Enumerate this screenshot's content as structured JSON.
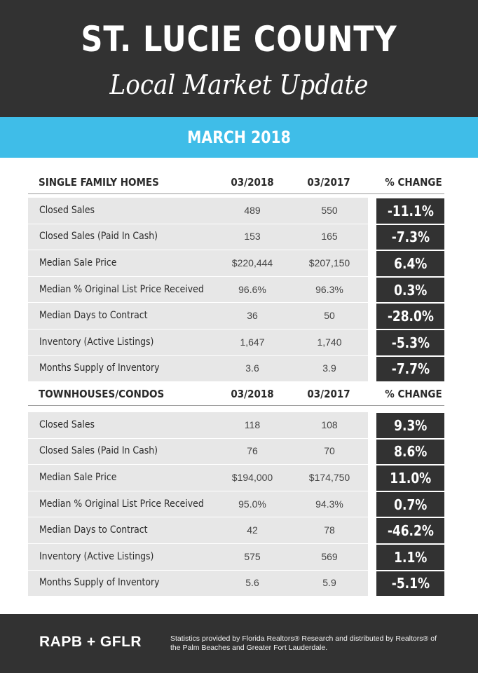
{
  "header": {
    "title": "ST. LUCIE COUNTY",
    "subtitle": "Local Market Update"
  },
  "month": "MARCH 2018",
  "sections": [
    {
      "name": "SINGLE FAMILY HOMES",
      "col1": "03/2018",
      "col2": "03/2017",
      "col3": "% CHANGE",
      "rows": [
        {
          "label": "Closed Sales",
          "v1": "489",
          "v2": "550",
          "change": "-11.1%"
        },
        {
          "label": "Closed Sales (Paid In Cash)",
          "v1": "153",
          "v2": "165",
          "change": "-7.3%"
        },
        {
          "label": "Median Sale Price",
          "v1": "$220,444",
          "v2": "$207,150",
          "change": "6.4%"
        },
        {
          "label": "Median % Original List Price Received",
          "v1": "96.6%",
          "v2": "96.3%",
          "change": "0.3%"
        },
        {
          "label": "Median Days to Contract",
          "v1": "36",
          "v2": "50",
          "change": "-28.0%"
        },
        {
          "label": "Inventory (Active Listings)",
          "v1": "1,647",
          "v2": "1,740",
          "change": "-5.3%"
        },
        {
          "label": "Months Supply of Inventory",
          "v1": "3.6",
          "v2": "3.9",
          "change": "-7.7%"
        }
      ]
    },
    {
      "name": "TOWNHOUSES/CONDOS",
      "col1": "03/2018",
      "col2": "03/2017",
      "col3": "% CHANGE",
      "rows": [
        {
          "label": "Closed Sales",
          "v1": "118",
          "v2": "108",
          "change": "9.3%"
        },
        {
          "label": "Closed Sales (Paid In Cash)",
          "v1": "76",
          "v2": "70",
          "change": "8.6%"
        },
        {
          "label": "Median Sale Price",
          "v1": "$194,000",
          "v2": "$174,750",
          "change": "11.0%"
        },
        {
          "label": "Median % Original List Price Received",
          "v1": "95.0%",
          "v2": "94.3%",
          "change": "0.7%"
        },
        {
          "label": "Median Days to Contract",
          "v1": "42",
          "v2": "78",
          "change": "-46.2%"
        },
        {
          "label": "Inventory (Active Listings)",
          "v1": "575",
          "v2": "569",
          "change": "1.1%"
        },
        {
          "label": "Months Supply of Inventory",
          "v1": "5.6",
          "v2": "5.9",
          "change": "-5.1%"
        }
      ]
    }
  ],
  "footer": {
    "brand": "RAPB + GFLR",
    "note": "Statistics provided by Florida Realtors® Research and distributed by Realtors® of the Palm Beaches and Greater Fort Lauderdale."
  },
  "colors": {
    "dark": "#323232",
    "accent": "#3fbde8",
    "row_bg": "#e7e7e7"
  }
}
